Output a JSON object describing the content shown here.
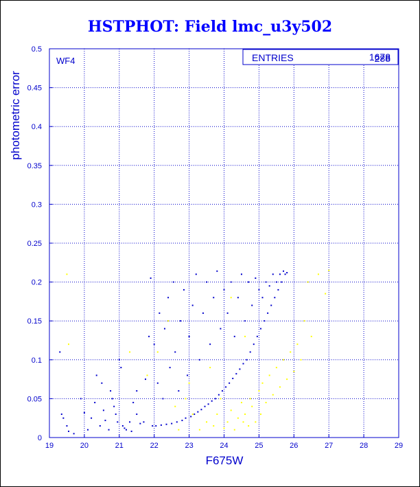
{
  "title": "HSTPHOT: Field lmc_u3y502",
  "chart_data": {
    "type": "scatter",
    "title": "HSTPHOT: Field lmc_u3y502",
    "xlabel": "F675W",
    "ylabel": "photometric error",
    "xlim": [
      19,
      29
    ],
    "ylim": [
      0,
      0.5
    ],
    "x_ticks": [
      "19",
      "20",
      "21",
      "22",
      "23",
      "24",
      "25",
      "26",
      "27",
      "28",
      "29"
    ],
    "y_ticks": [
      "0",
      "0.05",
      "0.1",
      "0.15",
      "0.2",
      "0.25",
      "0.3",
      "0.35",
      "0.4",
      "0.45",
      "0.5"
    ],
    "grid": true,
    "panel_label": "WF4",
    "stats_box": {
      "label": "ENTRIES",
      "values": [
        "1678",
        "288"
      ]
    },
    "series": [
      {
        "color": "#0000cc",
        "points": [
          [
            19.3,
            0.11
          ],
          [
            19.35,
            0.03
          ],
          [
            19.4,
            0.025
          ],
          [
            19.5,
            0.015
          ],
          [
            19.55,
            0.008
          ],
          [
            19.7,
            0.005
          ],
          [
            19.9,
            0.05
          ],
          [
            20.0,
            0.032
          ],
          [
            20.1,
            0.01
          ],
          [
            20.2,
            0.025
          ],
          [
            20.3,
            0.045
          ],
          [
            20.35,
            0.08
          ],
          [
            20.45,
            0.015
          ],
          [
            20.5,
            0.07
          ],
          [
            20.55,
            0.035
          ],
          [
            20.6,
            0.022
          ],
          [
            20.7,
            0.01
          ],
          [
            20.75,
            0.06
          ],
          [
            20.8,
            0.05
          ],
          [
            20.85,
            0.04
          ],
          [
            20.9,
            0.03
          ],
          [
            20.95,
            0.02
          ],
          [
            21.0,
            0.1
          ],
          [
            21.05,
            0.09
          ],
          [
            21.1,
            0.015
          ],
          [
            21.15,
            0.012
          ],
          [
            21.2,
            0.01
          ],
          [
            21.3,
            0.02
          ],
          [
            21.35,
            0.008
          ],
          [
            21.4,
            0.045
          ],
          [
            21.5,
            0.06
          ],
          [
            21.5,
            0.03
          ],
          [
            21.6,
            0.018
          ],
          [
            21.7,
            0.02
          ],
          [
            21.75,
            0.075
          ],
          [
            21.85,
            0.13
          ],
          [
            21.9,
            0.205
          ],
          [
            21.95,
            0.015
          ],
          [
            22.0,
            0.12
          ],
          [
            22.05,
            0.015
          ],
          [
            22.1,
            0.07
          ],
          [
            22.15,
            0.16
          ],
          [
            22.2,
            0.016
          ],
          [
            22.25,
            0.05
          ],
          [
            22.3,
            0.14
          ],
          [
            22.35,
            0.017
          ],
          [
            22.4,
            0.18
          ],
          [
            22.45,
            0.09
          ],
          [
            22.5,
            0.018
          ],
          [
            22.55,
            0.2
          ],
          [
            22.6,
            0.11
          ],
          [
            22.65,
            0.02
          ],
          [
            22.7,
            0.06
          ],
          [
            22.75,
            0.15
          ],
          [
            22.8,
            0.022
          ],
          [
            22.85,
            0.19
          ],
          [
            22.9,
            0.025
          ],
          [
            22.95,
            0.08
          ],
          [
            23.0,
            0.13
          ],
          [
            23.05,
            0.027
          ],
          [
            23.1,
            0.17
          ],
          [
            23.15,
            0.03
          ],
          [
            23.2,
            0.21
          ],
          [
            23.25,
            0.033
          ],
          [
            23.3,
            0.1
          ],
          [
            23.35,
            0.036
          ],
          [
            23.4,
            0.16
          ],
          [
            23.45,
            0.04
          ],
          [
            23.5,
            0.2
          ],
          [
            23.55,
            0.043
          ],
          [
            23.6,
            0.12
          ],
          [
            23.65,
            0.047
          ],
          [
            23.7,
            0.18
          ],
          [
            23.75,
            0.05
          ],
          [
            23.8,
            0.214
          ],
          [
            23.85,
            0.055
          ],
          [
            23.9,
            0.14
          ],
          [
            23.95,
            0.06
          ],
          [
            24.0,
            0.19
          ],
          [
            24.05,
            0.065
          ],
          [
            24.1,
            0.16
          ],
          [
            24.15,
            0.07
          ],
          [
            24.2,
            0.2
          ],
          [
            24.25,
            0.076
          ],
          [
            24.3,
            0.13
          ],
          [
            24.35,
            0.082
          ],
          [
            24.4,
            0.18
          ],
          [
            24.45,
            0.088
          ],
          [
            24.5,
            0.21
          ],
          [
            24.55,
            0.095
          ],
          [
            24.6,
            0.15
          ],
          [
            24.65,
            0.1
          ],
          [
            24.7,
            0.2
          ],
          [
            24.75,
            0.11
          ],
          [
            24.8,
            0.17
          ],
          [
            24.85,
            0.12
          ],
          [
            24.9,
            0.205
          ],
          [
            24.95,
            0.13
          ],
          [
            25.0,
            0.19
          ],
          [
            25.05,
            0.14
          ],
          [
            25.1,
            0.18
          ],
          [
            25.15,
            0.15
          ],
          [
            25.2,
            0.2
          ],
          [
            25.25,
            0.16
          ],
          [
            25.3,
            0.195
          ],
          [
            25.35,
            0.17
          ],
          [
            25.4,
            0.21
          ],
          [
            25.45,
            0.18
          ],
          [
            25.5,
            0.2
          ],
          [
            25.55,
            0.19
          ],
          [
            25.6,
            0.21
          ],
          [
            25.65,
            0.2
          ],
          [
            25.7,
            0.214
          ],
          [
            25.75,
            0.21
          ],
          [
            25.8,
            0.212
          ]
        ]
      },
      {
        "color": "#ffff00",
        "points": [
          [
            19.5,
            0.21
          ],
          [
            19.55,
            0.12
          ],
          [
            21.3,
            0.11
          ],
          [
            21.8,
            0.08
          ],
          [
            22.1,
            0.11
          ],
          [
            22.6,
            0.04
          ],
          [
            22.7,
            0.01
          ],
          [
            22.9,
            0.05
          ],
          [
            23.1,
            0.03
          ],
          [
            23.3,
            0.01
          ],
          [
            23.5,
            0.02
          ],
          [
            23.7,
            0.015
          ],
          [
            23.8,
            0.03
          ],
          [
            23.9,
            0.05
          ],
          [
            24.0,
            0.012
          ],
          [
            24.1,
            0.02
          ],
          [
            24.2,
            0.035
          ],
          [
            24.3,
            0.01
          ],
          [
            24.4,
            0.025
          ],
          [
            24.5,
            0.045
          ],
          [
            24.55,
            0.02
          ],
          [
            24.6,
            0.03
          ],
          [
            24.7,
            0.015
          ],
          [
            24.75,
            0.05
          ],
          [
            24.8,
            0.04
          ],
          [
            24.9,
            0.02
          ],
          [
            25.0,
            0.06
          ],
          [
            25.05,
            0.03
          ],
          [
            25.1,
            0.07
          ],
          [
            25.2,
            0.045
          ],
          [
            25.3,
            0.08
          ],
          [
            25.4,
            0.055
          ],
          [
            25.5,
            0.09
          ],
          [
            25.6,
            0.065
          ],
          [
            25.7,
            0.1
          ],
          [
            25.8,
            0.075
          ],
          [
            25.9,
            0.11
          ],
          [
            26.0,
            0.085
          ],
          [
            26.1,
            0.12
          ],
          [
            26.2,
            0.1
          ],
          [
            26.3,
            0.15
          ],
          [
            26.4,
            0.2
          ],
          [
            26.5,
            0.13
          ],
          [
            26.7,
            0.21
          ],
          [
            26.9,
            0.185
          ],
          [
            27.0,
            0.215
          ],
          [
            24.2,
            0.18
          ],
          [
            24.6,
            0.13
          ],
          [
            23.6,
            0.09
          ],
          [
            23.0,
            0.07
          ],
          [
            22.4,
            0.15
          ]
        ]
      }
    ]
  }
}
